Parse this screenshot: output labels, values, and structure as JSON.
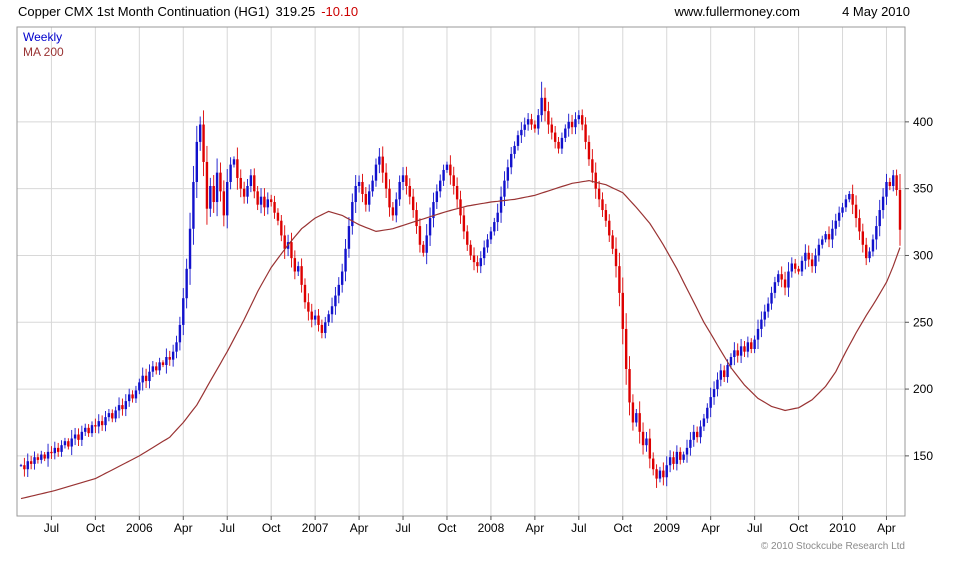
{
  "header": {
    "title": "Copper CMX 1st Month Continuation (HG1)",
    "price": "319.25",
    "change": "-10.10",
    "site": "www.fullermoney.com",
    "date": "4 May 2010"
  },
  "legend": {
    "timeframe": "Weekly",
    "ma": "MA 200"
  },
  "footer": {
    "copyright": "© 2010 Stockcube Research Ltd"
  },
  "chart_data": {
    "type": "candlestick",
    "title": "Copper CMX 1st Month Continuation (HG1)",
    "timeframe": "Weekly",
    "overlay": "MA 200",
    "last_price": 319.25,
    "change": -10.1,
    "ylabel": "",
    "y_ticks": [
      150,
      200,
      250,
      300,
      350,
      400
    ],
    "y_domain": [
      105,
      471
    ],
    "grid": true,
    "x_ticks": [
      {
        "label": "Jul",
        "i": 9
      },
      {
        "label": "Oct",
        "i": 22
      },
      {
        "label": "2006",
        "i": 35
      },
      {
        "label": "Apr",
        "i": 48
      },
      {
        "label": "Jul",
        "i": 61
      },
      {
        "label": "Oct",
        "i": 74
      },
      {
        "label": "2007",
        "i": 87
      },
      {
        "label": "Apr",
        "i": 100
      },
      {
        "label": "Jul",
        "i": 113
      },
      {
        "label": "Oct",
        "i": 126
      },
      {
        "label": "2008",
        "i": 139
      },
      {
        "label": "Apr",
        "i": 152
      },
      {
        "label": "Jul",
        "i": 165
      },
      {
        "label": "Oct",
        "i": 178
      },
      {
        "label": "2009",
        "i": 191
      },
      {
        "label": "Apr",
        "i": 204
      },
      {
        "label": "Jul",
        "i": 217
      },
      {
        "label": "Oct",
        "i": 230
      },
      {
        "label": "2010",
        "i": 243
      },
      {
        "label": "Apr",
        "i": 256
      }
    ],
    "weekly_closes": [
      143,
      140,
      146,
      144,
      149,
      147,
      151,
      148,
      153,
      152,
      156,
      153,
      158,
      161,
      157,
      163,
      166,
      162,
      168,
      171,
      167,
      173,
      172,
      176,
      173,
      179,
      182,
      178,
      184,
      188,
      185,
      191,
      196,
      193,
      199,
      205,
      210,
      206,
      213,
      217,
      214,
      220,
      218,
      224,
      222,
      228,
      235,
      248,
      268,
      290,
      320,
      355,
      385,
      398,
      370,
      335,
      352,
      340,
      362,
      348,
      330,
      355,
      368,
      372,
      358,
      350,
      344,
      352,
      360,
      348,
      338,
      344,
      336,
      342,
      340,
      332,
      326,
      315,
      305,
      310,
      298,
      288,
      292,
      278,
      265,
      258,
      252,
      255,
      248,
      242,
      250,
      256,
      262,
      270,
      278,
      288,
      305,
      322,
      340,
      352,
      355,
      346,
      338,
      348,
      356,
      368,
      374,
      362,
      350,
      336,
      330,
      342,
      355,
      360,
      352,
      344,
      334,
      322,
      308,
      302,
      315,
      328,
      340,
      348,
      356,
      364,
      368,
      360,
      352,
      342,
      330,
      318,
      308,
      300,
      295,
      292,
      298,
      306,
      312,
      318,
      325,
      332,
      344,
      356,
      366,
      376,
      382,
      390,
      394,
      398,
      402,
      398,
      395,
      405,
      418,
      408,
      398,
      392,
      385,
      380,
      388,
      395,
      400,
      396,
      402,
      405,
      398,
      385,
      372,
      362,
      350,
      342,
      334,
      326,
      315,
      305,
      292,
      272,
      245,
      215,
      190,
      175,
      182,
      168,
      158,
      163,
      148,
      140,
      133,
      139,
      134,
      143,
      149,
      144,
      153,
      147,
      151,
      156,
      162,
      168,
      164,
      172,
      178,
      186,
      194,
      200,
      207,
      214,
      209,
      218,
      224,
      229,
      225,
      232,
      228,
      235,
      230,
      237,
      245,
      252,
      258,
      264,
      272,
      280,
      286,
      282,
      276,
      288,
      294,
      290,
      288,
      296,
      302,
      297,
      292,
      300,
      308,
      312,
      316,
      312,
      320,
      326,
      332,
      336,
      342,
      346,
      338,
      328,
      318,
      308,
      298,
      303,
      312,
      322,
      334,
      344,
      355,
      352,
      360,
      349,
      319.25
    ],
    "wick_overrides": [
      {
        "i": 53,
        "high": 404
      },
      {
        "i": 154,
        "high": 430
      },
      {
        "i": 188,
        "low": 126
      }
    ],
    "ma200_anchors": [
      [
        0,
        118
      ],
      [
        10,
        124
      ],
      [
        22,
        133
      ],
      [
        35,
        150
      ],
      [
        44,
        164
      ],
      [
        48,
        175
      ],
      [
        52,
        188
      ],
      [
        56,
        206
      ],
      [
        61,
        228
      ],
      [
        66,
        252
      ],
      [
        70,
        273
      ],
      [
        74,
        291
      ],
      [
        79,
        308
      ],
      [
        83,
        320
      ],
      [
        87,
        328
      ],
      [
        91,
        333
      ],
      [
        95,
        330
      ],
      [
        100,
        323
      ],
      [
        105,
        318
      ],
      [
        110,
        320
      ],
      [
        116,
        325
      ],
      [
        121,
        329
      ],
      [
        126,
        333
      ],
      [
        132,
        337
      ],
      [
        139,
        340
      ],
      [
        146,
        342
      ],
      [
        152,
        345
      ],
      [
        158,
        350
      ],
      [
        163,
        354
      ],
      [
        168,
        356
      ],
      [
        173,
        353
      ],
      [
        178,
        347
      ],
      [
        182,
        336
      ],
      [
        186,
        324
      ],
      [
        190,
        308
      ],
      [
        194,
        290
      ],
      [
        198,
        270
      ],
      [
        202,
        250
      ],
      [
        206,
        233
      ],
      [
        210,
        216
      ],
      [
        214,
        203
      ],
      [
        218,
        193
      ],
      [
        222,
        187
      ],
      [
        226,
        184
      ],
      [
        230,
        186
      ],
      [
        234,
        192
      ],
      [
        238,
        202
      ],
      [
        241,
        213
      ],
      [
        244,
        228
      ],
      [
        247,
        242
      ],
      [
        250,
        255
      ],
      [
        253,
        267
      ],
      [
        256,
        280
      ],
      [
        258,
        292
      ],
      [
        260,
        306
      ]
    ],
    "colors": {
      "up": "#1111cc",
      "down": "#dd0000",
      "ma": "#993333",
      "grid": "#d8d8d8",
      "border": "#999999",
      "tick": "#555555",
      "label": "#000000"
    }
  }
}
